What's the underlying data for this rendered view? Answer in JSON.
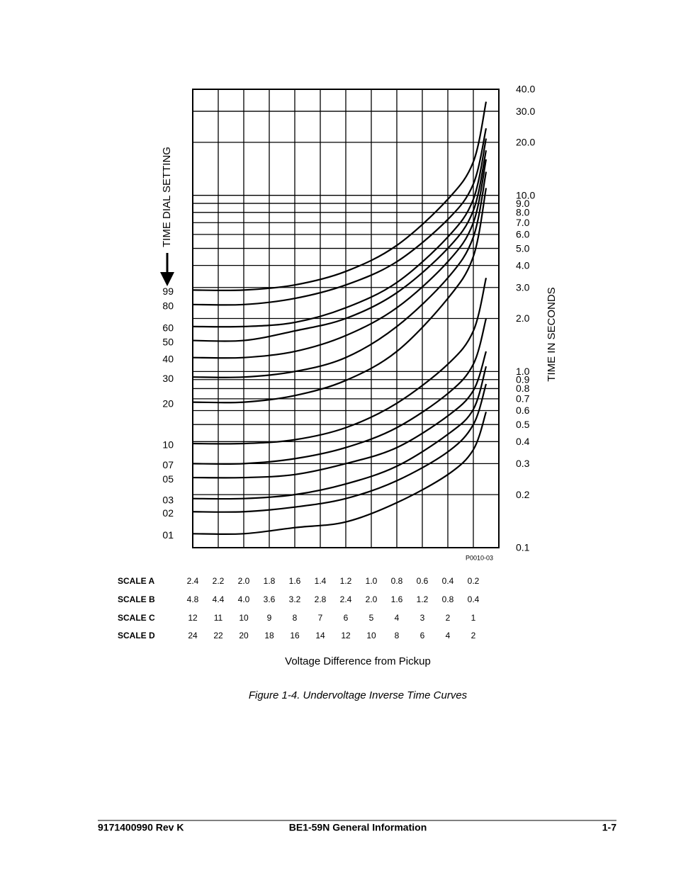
{
  "chart_data": {
    "type": "line",
    "y_label": "TIME IN SECONDS",
    "legend_title": "TIME DIAL SETTING",
    "x_label": "Voltage Difference from Pickup",
    "figure_id": "P0010-03",
    "y_scale": "log",
    "grid": true,
    "color": "#000000",
    "xlim": [
      2.4,
      0
    ],
    "ylim": [
      0.1,
      40
    ],
    "xticks": [
      2.4,
      2.2,
      2,
      1.8,
      1.6,
      1.4,
      1.2,
      1,
      0.8,
      0.6,
      0.4,
      0.2
    ],
    "yticks": [
      {
        "value": 40,
        "label": "40.0"
      },
      {
        "value": 30,
        "label": "30.0"
      },
      {
        "value": 20,
        "label": "20.0"
      },
      {
        "value": 10,
        "label": "10.0"
      },
      {
        "value": 9,
        "label": "9.0"
      },
      {
        "value": 8,
        "label": "8.0"
      },
      {
        "value": 7,
        "label": "7.0"
      },
      {
        "value": 6,
        "label": "6.0"
      },
      {
        "value": 5,
        "label": "5.0"
      },
      {
        "value": 4,
        "label": "4.0"
      },
      {
        "value": 3,
        "label": "3.0"
      },
      {
        "value": 2,
        "label": "2.0"
      },
      {
        "value": 1,
        "label": "1.0"
      },
      0.9,
      0.8,
      0.7,
      0.6,
      0.5,
      0.4,
      0.3,
      0.2,
      0.1
    ],
    "x_scales": [
      {
        "name": "SCALE A",
        "labels": [
          "2.4",
          "2.2",
          "2.0",
          "1.8",
          "1.6",
          "1.4",
          "1.2",
          "1.0",
          "0.8",
          "0.6",
          "0.4",
          "0.2"
        ]
      },
      {
        "name": "SCALE B",
        "labels": [
          "4.8",
          "4.4",
          "4.0",
          "3.6",
          "3.2",
          "2.8",
          "2.4",
          "2.0",
          "1.6",
          "1.2",
          "0.8",
          "0.4"
        ]
      },
      {
        "name": "SCALE C",
        "labels": [
          "12",
          "11",
          "10",
          "9",
          "8",
          "7",
          "6",
          "5",
          "4",
          "3",
          "2",
          "1"
        ]
      },
      {
        "name": "SCALE D",
        "labels": [
          "24",
          "22",
          "20",
          "18",
          "16",
          "14",
          "12",
          "10",
          "8",
          "6",
          "4",
          "2"
        ]
      }
    ],
    "x": [
      2.4,
      2.0,
      1.6,
      1.2,
      0.8,
      0.4,
      0.2,
      0.1
    ],
    "series": [
      {
        "name": "99",
        "values": [
          2.9,
          2.9,
          3.1,
          3.7,
          5.2,
          9.5,
          15.5,
          34
        ]
      },
      {
        "name": "80",
        "values": [
          2.4,
          2.4,
          2.6,
          3.1,
          4.2,
          7.3,
          11.6,
          24
        ]
      },
      {
        "name": "60",
        "values": [
          1.8,
          1.8,
          1.9,
          2.3,
          3.2,
          5.8,
          9.5,
          21
        ]
      },
      {
        "name": "50",
        "values": [
          1.5,
          1.5,
          1.7,
          2.0,
          2.8,
          5.0,
          8.2,
          18
        ]
      },
      {
        "name": "40",
        "values": [
          1.2,
          1.2,
          1.3,
          1.6,
          2.3,
          4.2,
          7.0,
          16
        ]
      },
      {
        "name": "30",
        "values": [
          0.93,
          0.93,
          1.0,
          1.2,
          1.8,
          3.4,
          5.8,
          13.6
        ]
      },
      {
        "name": "20",
        "values": [
          0.67,
          0.67,
          0.73,
          0.89,
          1.3,
          2.6,
          4.5,
          11
        ]
      },
      {
        "name": "10",
        "values": [
          0.39,
          0.39,
          0.41,
          0.48,
          0.66,
          1.1,
          1.7,
          3.4
        ]
      },
      {
        "name": "07",
        "values": [
          0.3,
          0.3,
          0.32,
          0.37,
          0.48,
          0.75,
          1.1,
          2.0
        ]
      },
      {
        "name": "05",
        "values": [
          0.25,
          0.25,
          0.26,
          0.3,
          0.37,
          0.56,
          0.78,
          1.3
        ]
      },
      {
        "name": "03",
        "values": [
          0.19,
          0.19,
          0.2,
          0.23,
          0.29,
          0.44,
          0.61,
          1.07
        ]
      },
      {
        "name": "02",
        "values": [
          0.16,
          0.16,
          0.17,
          0.19,
          0.24,
          0.35,
          0.5,
          0.85
        ]
      },
      {
        "name": "01",
        "values": [
          0.12,
          0.12,
          0.13,
          0.14,
          0.18,
          0.26,
          0.36,
          0.59
        ]
      }
    ]
  },
  "caption": "Figure 1-4. Undervoltage Inverse Time Curves",
  "footer": {
    "left": "9171400990 Rev K",
    "center": "BE1-59N General Information",
    "right": "1-7"
  }
}
